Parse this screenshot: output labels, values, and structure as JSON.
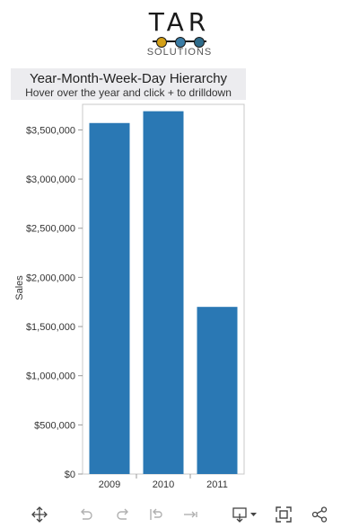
{
  "logo": {
    "text": "TAR",
    "subtext": "SOLUTIONS",
    "dot_colors": [
      "#d4a017",
      "#3a7ca5",
      "#2e6b8a"
    ]
  },
  "header": {
    "title": "Year-Month-Week-Day Hierarchy",
    "subtitle": "Hover over the year and click + to drilldown"
  },
  "chart_data": {
    "type": "bar",
    "categories": [
      "2009",
      "2010",
      "2011"
    ],
    "values": [
      3570000,
      3690000,
      1700000
    ],
    "ylabel": "Sales",
    "xlabel": "",
    "ylim": [
      0,
      3760000
    ],
    "yticks": [
      0,
      500000,
      1000000,
      1500000,
      2000000,
      2500000,
      3000000,
      3500000
    ],
    "ytick_labels": [
      "$0",
      "$500,000",
      "$1,000,000",
      "$1,500,000",
      "$2,000,000",
      "$2,500,000",
      "$3,000,000",
      "$3,500,000"
    ],
    "bar_color": "#2a78b4",
    "grid": false
  },
  "toolbar": {
    "icons": [
      "move-icon",
      "undo-icon",
      "redo-icon",
      "revert-icon",
      "refresh-icon",
      "download-icon",
      "fullscreen-icon",
      "share-icon"
    ]
  }
}
